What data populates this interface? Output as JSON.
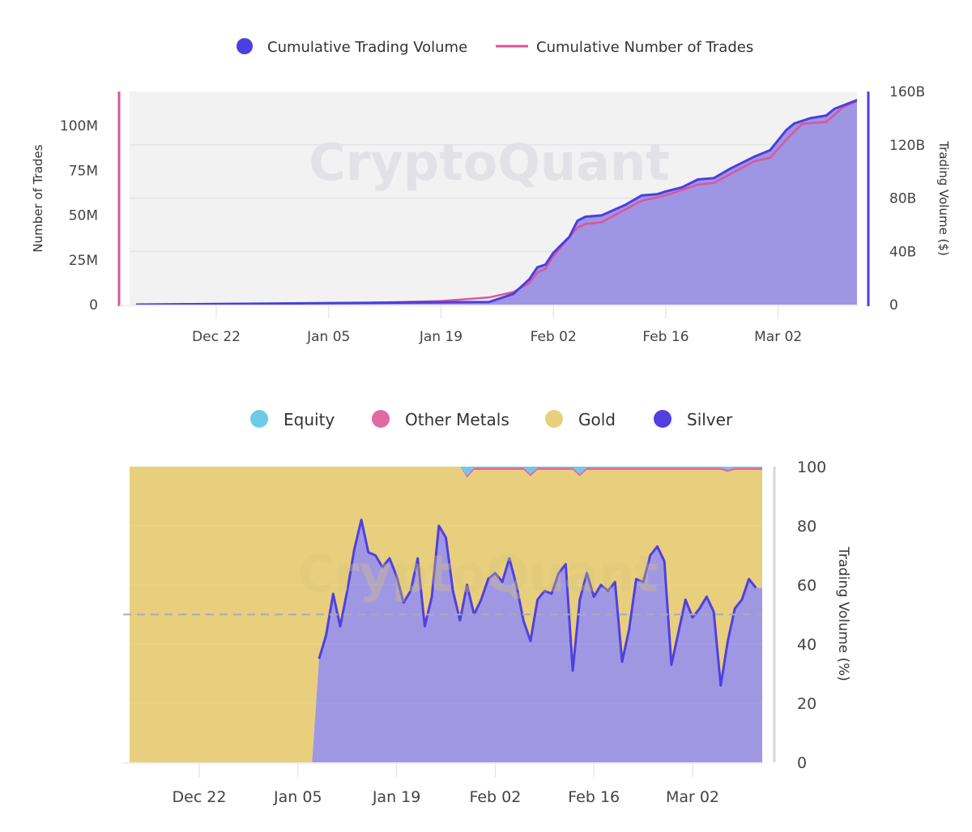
{
  "watermark": "CryptoQuant",
  "chart_data": [
    {
      "type": "area",
      "legend": [
        {
          "name": "Cumulative Trading Volume",
          "color": "#4b3fe0",
          "marker": "circle"
        },
        {
          "name": "Cumulative Number of Trades",
          "color": "#d9579b",
          "marker": "line"
        }
      ],
      "legend_placement": "top",
      "x_ticks": [
        "Dec 22",
        "Jan 05",
        "Jan 19",
        "Feb 02",
        "Feb 16",
        "Mar 02"
      ],
      "y_left": {
        "label": "Number of Trades",
        "ticks": [
          "0",
          "25M",
          "50M",
          "75M",
          "100M"
        ],
        "range_millions": [
          0,
          119
        ],
        "axis_color": "#d9579b"
      },
      "y_right": {
        "label": "Trading Volume ($)",
        "ticks": [
          "0",
          "40B",
          "80B",
          "120B",
          "160B"
        ],
        "range_billions": [
          0,
          160
        ],
        "axis_color": "#4b3fe0"
      },
      "grid": true,
      "plot_background": "#f2f2f3",
      "series": [
        {
          "name": "Cumulative Trading Volume",
          "unit": "B USD",
          "axis": "right",
          "color": "#4b3fe0",
          "fill": "#9f95e5",
          "x": [
            "Dec 12",
            "Jan 25",
            "Jan 28",
            "Jan 30",
            "Jan 31",
            "Feb 01",
            "Feb 02",
            "Feb 04",
            "Feb 05",
            "Feb 06",
            "Feb 08",
            "Feb 11",
            "Feb 13",
            "Feb 15",
            "Feb 16",
            "Feb 18",
            "Feb 20",
            "Feb 22",
            "Feb 24",
            "Feb 27",
            "Mar 01",
            "Mar 03",
            "Mar 04",
            "Mar 06",
            "Mar 08",
            "Mar 09",
            "Mar 12"
          ],
          "values": [
            0,
            2,
            8,
            19,
            28,
            30,
            39,
            51,
            63,
            66,
            67,
            75,
            82,
            83,
            85,
            88,
            94,
            95,
            102,
            111,
            116,
            131,
            136,
            140,
            142,
            147,
            154
          ]
        },
        {
          "name": "Cumulative Number of Trades",
          "unit": "M",
          "axis": "left",
          "color": "#d9579b",
          "x": [
            "Dec 12",
            "Jan 10",
            "Jan 19",
            "Jan 25",
            "Jan 28",
            "Jan 30",
            "Jan 31",
            "Feb 01",
            "Feb 02",
            "Feb 05",
            "Feb 06",
            "Feb 08",
            "Feb 13",
            "Feb 16",
            "Feb 20",
            "Feb 22",
            "Feb 27",
            "Mar 01",
            "Mar 03",
            "Mar 05",
            "Mar 08",
            "Mar 10",
            "Mar 12"
          ],
          "values": [
            0,
            1,
            2,
            4,
            7,
            12,
            18,
            20,
            27,
            43,
            45,
            46,
            58,
            61,
            67,
            68,
            80,
            82,
            92,
            101,
            102,
            110,
            114
          ]
        }
      ]
    },
    {
      "type": "area",
      "stacked": true,
      "legend": [
        {
          "name": "Equity",
          "color": "#6ecbe6"
        },
        {
          "name": "Other Metals",
          "color": "#e06aa5"
        },
        {
          "name": "Gold",
          "color": "#e8cf7e"
        },
        {
          "name": "Silver",
          "color": "#5040e0"
        }
      ],
      "legend_placement": "top",
      "x_ticks": [
        "Dec 22",
        "Jan 05",
        "Jan 19",
        "Feb 02",
        "Feb 16",
        "Mar 02"
      ],
      "y_right": {
        "label": "Trading Volume (%)",
        "ticks": [
          "0",
          "20",
          "40",
          "60",
          "80",
          "100"
        ],
        "range": [
          0,
          100
        ]
      },
      "dashed_line_value": 50,
      "x": [
        "Dec 12",
        "Jan 07",
        "Jan 08",
        "Jan 09",
        "Jan 10",
        "Jan 11",
        "Jan 12",
        "Jan 13",
        "Jan 14",
        "Jan 15",
        "Jan 16",
        "Jan 17",
        "Jan 18",
        "Jan 19",
        "Jan 20",
        "Jan 21",
        "Jan 22",
        "Jan 23",
        "Jan 24",
        "Jan 25",
        "Jan 26",
        "Jan 27",
        "Jan 28",
        "Jan 29",
        "Jan 30",
        "Jan 31",
        "Feb 01",
        "Feb 02",
        "Feb 03",
        "Feb 04",
        "Feb 05",
        "Feb 06",
        "Feb 07",
        "Feb 08",
        "Feb 09",
        "Feb 10",
        "Feb 11",
        "Feb 12",
        "Feb 13",
        "Feb 14",
        "Feb 15",
        "Feb 16",
        "Feb 17",
        "Feb 18",
        "Feb 19",
        "Feb 20",
        "Feb 21",
        "Feb 22",
        "Feb 23",
        "Feb 24",
        "Feb 25",
        "Feb 26",
        "Feb 27",
        "Feb 28",
        "Mar 01",
        "Mar 02",
        "Mar 03",
        "Mar 04",
        "Mar 05",
        "Mar 06",
        "Mar 07",
        "Mar 08",
        "Mar 09",
        "Mar 10",
        "Mar 11"
      ],
      "series": [
        {
          "name": "Silver",
          "color": "#5040e0",
          "fill": "#a097e3",
          "values": [
            0,
            0,
            35,
            43,
            57,
            46,
            58,
            72,
            82,
            71,
            70,
            66,
            69,
            63,
            54,
            58,
            69,
            46,
            56,
            80,
            76,
            58,
            48,
            60,
            50,
            55,
            62,
            64,
            61,
            69,
            60,
            48,
            41,
            55,
            58,
            57,
            64,
            67,
            31,
            55,
            64,
            56,
            60,
            58,
            61,
            34,
            45,
            62,
            61,
            70,
            73,
            68,
            33,
            44,
            55,
            49,
            52,
            56,
            51,
            26,
            41,
            52,
            55,
            62,
            59
          ]
        },
        {
          "name": "Gold",
          "color": "#e8cf7e",
          "values": [
            100,
            100,
            65,
            57,
            43,
            54,
            42,
            28,
            18,
            29,
            30,
            34,
            31,
            37,
            46,
            42,
            31,
            54,
            44,
            20,
            24,
            42,
            52,
            36.2,
            48.9,
            43.9,
            36.9,
            34.9,
            37.9,
            29.9,
            38.9,
            50.9,
            55.7,
            43.9,
            40.9,
            41.9,
            34.9,
            31.9,
            67.9,
            41.7,
            34.9,
            42.9,
            38.9,
            40.9,
            37.9,
            64.9,
            53.9,
            36.9,
            37.9,
            28.9,
            25.9,
            30.9,
            65.9,
            54.9,
            43.9,
            49.9,
            46.9,
            42.9,
            47.9,
            72.9,
            57.2,
            46.9,
            43.9,
            36.9,
            39.9
          ]
        },
        {
          "name": "Other Metals",
          "color": "#e06aa5",
          "values": [
            0,
            0,
            0,
            0,
            0,
            0,
            0,
            0,
            0,
            0,
            0,
            0,
            0,
            0,
            0,
            0,
            0,
            0,
            0,
            0,
            0,
            0,
            0,
            0.8,
            0.8,
            0.8,
            0.8,
            0.8,
            0.8,
            0.8,
            0.8,
            0.8,
            0.8,
            0.8,
            0.8,
            0.8,
            0.8,
            0.8,
            0.8,
            0.8,
            0.8,
            0.8,
            0.8,
            0.8,
            0.8,
            0.8,
            0.8,
            0.8,
            0.8,
            0.8,
            0.8,
            0.8,
            0.8,
            0.8,
            0.8,
            0.8,
            0.8,
            0.8,
            0.8,
            0.8,
            0.8,
            0.8,
            0.8,
            0.8,
            0.8
          ]
        },
        {
          "name": "Equity",
          "color": "#6ecbe6",
          "values": [
            0,
            0,
            0,
            0,
            0,
            0,
            0,
            0,
            0,
            0,
            0,
            0,
            0,
            0,
            0,
            0,
            0,
            0,
            0,
            0,
            0,
            0,
            0,
            3,
            0.3,
            0.3,
            0.3,
            0.3,
            0.3,
            0.3,
            0.3,
            0.3,
            2.5,
            0.3,
            0.3,
            0.3,
            0.3,
            0.3,
            0.3,
            2.5,
            0.3,
            0.3,
            0.3,
            0.3,
            0.3,
            0.3,
            0.3,
            0.3,
            0.3,
            0.3,
            0.3,
            0.3,
            0.3,
            0.3,
            0.3,
            0.3,
            0.3,
            0.3,
            0.3,
            0.3,
            1,
            0.3,
            0.3,
            0.3,
            0.3
          ]
        }
      ]
    }
  ]
}
